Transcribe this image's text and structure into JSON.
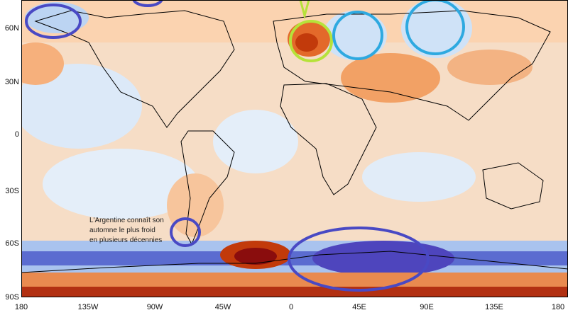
{
  "latitude_labels": [
    "60N",
    "30N",
    "0",
    "30S",
    "60S",
    "90S"
  ],
  "longitude_labels": [
    "180",
    "135W",
    "90W",
    "45W",
    "0",
    "45E",
    "90E",
    "135E",
    "180"
  ],
  "annotation": {
    "text_lines": [
      "L'Argentine connaît son",
      "automne le plus froid",
      "en plusieurs décennies"
    ]
  },
  "colors": {
    "cold_light": "#cfe2f7",
    "cold_mid": "#8fb6ea",
    "cold_deep": "#3a4bb8",
    "warm_light": "#fbd3b0",
    "warm_mid": "#f29a58",
    "warm_deep": "#c23a0b",
    "warm_extreme": "#8a0d0d",
    "circle_purple": "#4949c4",
    "circle_cyan": "#2ea9e0",
    "circle_lime": "#b6e23a",
    "coastline": "#000000"
  },
  "highlights": [
    {
      "name": "alaska-circle",
      "color_key": "circle_purple"
    },
    {
      "name": "canada-top-circle",
      "color_key": "circle_purple"
    },
    {
      "name": "central-europe-circle",
      "color_key": "circle_lime"
    },
    {
      "name": "western-russia-circle",
      "color_key": "circle_cyan"
    },
    {
      "name": "siberia-circle",
      "color_key": "circle_cyan"
    },
    {
      "name": "patagonia-circle",
      "color_key": "circle_purple"
    },
    {
      "name": "east-antarctica-circle",
      "color_key": "circle_purple"
    }
  ]
}
